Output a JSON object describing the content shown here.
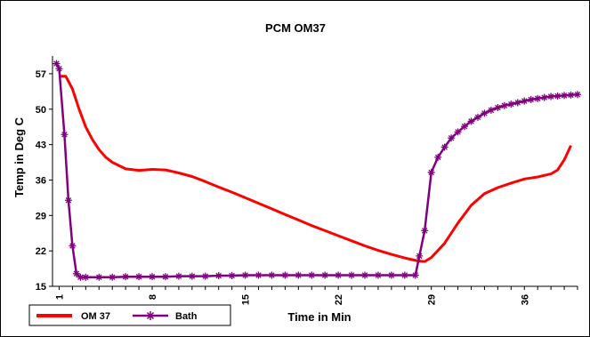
{
  "chart_data": {
    "type": "line",
    "title": "PCM  OM37",
    "xlabel": "Time  in Min",
    "ylabel": "Temp in Deg C",
    "x_ticks": [
      "1",
      "8",
      "15",
      "22",
      "29",
      "36"
    ],
    "y_ticks": [
      "15",
      "22",
      "29",
      "36",
      "43",
      "50",
      "57"
    ],
    "ylim": [
      15,
      60.5
    ],
    "xlim": [
      0.5,
      40
    ],
    "grid": false,
    "legend_position": "bottom-left",
    "series": [
      {
        "name": "OM 37",
        "color": "#ff0000",
        "marker": "none",
        "points": [
          [
            1,
            56.5
          ],
          [
            1.5,
            56.5
          ],
          [
            2,
            54
          ],
          [
            2.5,
            50
          ],
          [
            3,
            46.5
          ],
          [
            3.5,
            44
          ],
          [
            4,
            42
          ],
          [
            4.5,
            40.5
          ],
          [
            5,
            39.5
          ],
          [
            6,
            38.2
          ],
          [
            7,
            37.9
          ],
          [
            8,
            38.1
          ],
          [
            9,
            38
          ],
          [
            10,
            37.4
          ],
          [
            11,
            36.7
          ],
          [
            12,
            35.7
          ],
          [
            13,
            34.6
          ],
          [
            14,
            33.6
          ],
          [
            15,
            32.5
          ],
          [
            16,
            31.4
          ],
          [
            17,
            30.3
          ],
          [
            18,
            29.2
          ],
          [
            19,
            28.1
          ],
          [
            20,
            27
          ],
          [
            21,
            26
          ],
          [
            22,
            25
          ],
          [
            23,
            24
          ],
          [
            24,
            23
          ],
          [
            25,
            22.1
          ],
          [
            26,
            21.3
          ],
          [
            27,
            20.6
          ],
          [
            28,
            20
          ],
          [
            28.5,
            19.9
          ],
          [
            29,
            20.7
          ],
          [
            30,
            23.5
          ],
          [
            31,
            27.5
          ],
          [
            32,
            31
          ],
          [
            33,
            33.3
          ],
          [
            34,
            34.5
          ],
          [
            35,
            35.4
          ],
          [
            36,
            36.2
          ],
          [
            37,
            36.6
          ],
          [
            38,
            37.2
          ],
          [
            38.5,
            38
          ],
          [
            39,
            40
          ],
          [
            39.5,
            42.8
          ]
        ]
      },
      {
        "name": "Bath",
        "color": "#800080",
        "marker": "star",
        "points": [
          [
            0.8,
            59
          ],
          [
            1,
            58
          ],
          [
            1.4,
            45
          ],
          [
            1.7,
            32
          ],
          [
            2,
            23
          ],
          [
            2.3,
            17.5
          ],
          [
            2.6,
            16.8
          ],
          [
            3,
            16.8
          ],
          [
            4,
            16.8
          ],
          [
            5,
            16.8
          ],
          [
            6,
            16.9
          ],
          [
            7,
            16.9
          ],
          [
            8,
            16.9
          ],
          [
            9,
            16.9
          ],
          [
            10,
            17
          ],
          [
            11,
            17
          ],
          [
            12,
            17
          ],
          [
            13,
            17.1
          ],
          [
            14,
            17.1
          ],
          [
            15,
            17.2
          ],
          [
            16,
            17.2
          ],
          [
            17,
            17.2
          ],
          [
            18,
            17.2
          ],
          [
            19,
            17.2
          ],
          [
            20,
            17.2
          ],
          [
            21,
            17.2
          ],
          [
            22,
            17.2
          ],
          [
            23,
            17.2
          ],
          [
            24,
            17.2
          ],
          [
            25,
            17.2
          ],
          [
            26,
            17.2
          ],
          [
            27,
            17.2
          ],
          [
            27.8,
            17.2
          ],
          [
            28.1,
            21
          ],
          [
            28.5,
            26
          ],
          [
            29,
            37.5
          ],
          [
            29.5,
            40.5
          ],
          [
            30,
            42.5
          ],
          [
            30.5,
            44.3
          ],
          [
            31,
            45.5
          ],
          [
            31.5,
            46.6
          ],
          [
            32,
            47.6
          ],
          [
            32.5,
            48.4
          ],
          [
            33,
            49.2
          ],
          [
            33.5,
            49.8
          ],
          [
            34,
            50.3
          ],
          [
            34.5,
            50.7
          ],
          [
            35,
            51
          ],
          [
            35.5,
            51.3
          ],
          [
            36,
            51.6
          ],
          [
            36.5,
            51.9
          ],
          [
            37,
            52.1
          ],
          [
            37.5,
            52.3
          ],
          [
            38,
            52.5
          ],
          [
            38.5,
            52.6
          ],
          [
            39,
            52.7
          ],
          [
            39.5,
            52.8
          ],
          [
            40,
            52.9
          ]
        ]
      }
    ]
  }
}
